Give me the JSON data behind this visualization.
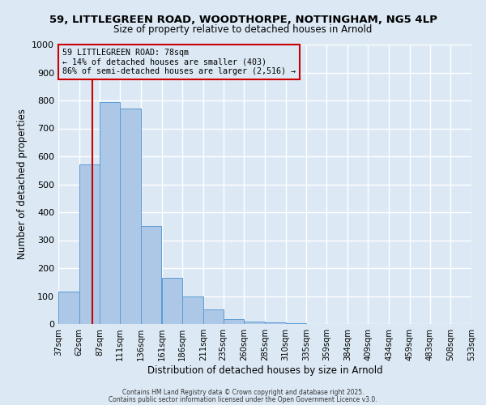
{
  "title_line1": "59, LITTLEGREEN ROAD, WOODTHORPE, NOTTINGHAM, NG5 4LP",
  "title_line2": "Size of property relative to detached houses in Arnold",
  "xlabel": "Distribution of detached houses by size in Arnold",
  "ylabel": "Number of detached properties",
  "bar_color": "#adc8e6",
  "bar_edge_color": "#5b9bd5",
  "background_color": "#dce9f5",
  "grid_color": "#ffffff",
  "bin_edges": [
    37,
    62,
    87,
    111,
    136,
    161,
    186,
    211,
    235,
    260,
    285,
    310,
    335,
    359,
    384,
    409,
    434,
    459,
    483,
    508,
    533
  ],
  "bar_heights": [
    115,
    570,
    795,
    770,
    350,
    165,
    100,
    53,
    18,
    8,
    5,
    2,
    1,
    1,
    1,
    1,
    0,
    0,
    0,
    0
  ],
  "vline_x": 78,
  "vline_color": "#cc0000",
  "annotation_line1": "59 LITTLEGREEN ROAD: 78sqm",
  "annotation_line2": "← 14% of detached houses are smaller (403)",
  "annotation_line3": "86% of semi-detached houses are larger (2,516) →",
  "annotation_box_color": "#cc0000",
  "ylim": [
    0,
    1000
  ],
  "yticks": [
    0,
    100,
    200,
    300,
    400,
    500,
    600,
    700,
    800,
    900,
    1000
  ],
  "tick_labels": [
    "37sqm",
    "62sqm",
    "87sqm",
    "111sqm",
    "136sqm",
    "161sqm",
    "186sqm",
    "211sqm",
    "235sqm",
    "260sqm",
    "285sqm",
    "310sqm",
    "335sqm",
    "359sqm",
    "384sqm",
    "409sqm",
    "434sqm",
    "459sqm",
    "483sqm",
    "508sqm",
    "533sqm"
  ],
  "footer_line1": "Contains HM Land Registry data © Crown copyright and database right 2025.",
  "footer_line2": "Contains public sector information licensed under the Open Government Licence v3.0."
}
